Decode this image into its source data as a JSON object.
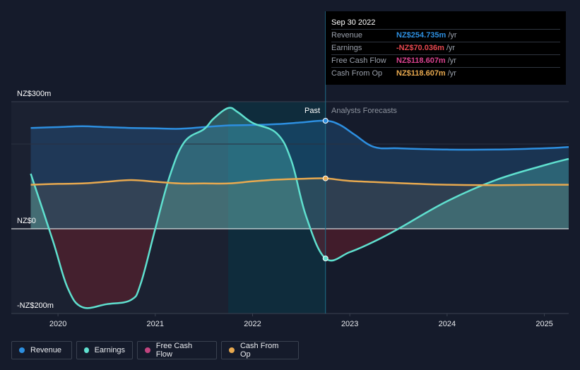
{
  "tooltip": {
    "date": "Sep 30 2022",
    "rows": [
      {
        "name": "Revenue",
        "value": "NZ$254.735m",
        "unit": "/yr",
        "color": "#2d8fe0"
      },
      {
        "name": "Earnings",
        "value": "-NZ$70.036m",
        "unit": "/yr",
        "color": "#e8484f"
      },
      {
        "name": "Free Cash Flow",
        "value": "NZ$118.607m",
        "unit": "/yr",
        "color": "#d9428f"
      },
      {
        "name": "Cash From Op",
        "value": "NZ$118.607m",
        "unit": "/yr",
        "color": "#e8a94f"
      }
    ]
  },
  "regions": {
    "past_label": "Past",
    "forecast_label": "Analysts Forecasts"
  },
  "legend": [
    {
      "label": "Revenue",
      "color": "#2d8fe0"
    },
    {
      "label": "Earnings",
      "color": "#5fe0cf"
    },
    {
      "label": "Free Cash Flow",
      "color": "#c2447f"
    },
    {
      "label": "Cash From Op",
      "color": "#e8a94f"
    }
  ],
  "chart_data": {
    "type": "line",
    "y_tick_labels": [
      "NZ$300m",
      "NZ$0",
      "-NZ$200m"
    ],
    "y_ticks": [
      300,
      0,
      -200
    ],
    "ylim": [
      -200,
      300
    ],
    "x_tick_labels": [
      "2020",
      "2021",
      "2022",
      "2023",
      "2024",
      "2025"
    ],
    "x_ticks": [
      2020.0,
      2021.0,
      2022.0,
      2023.0,
      2024.0,
      2025.0
    ],
    "xlim": [
      2019.52,
      2025.25
    ],
    "past_end": 2022.75,
    "highlight_start": 2021.75,
    "series": [
      {
        "name": "Revenue",
        "color": "#2d8fe0",
        "x": [
          2019.72,
          2020.0,
          2020.25,
          2020.5,
          2020.75,
          2021.0,
          2021.25,
          2021.5,
          2021.75,
          2022.0,
          2022.25,
          2022.5,
          2022.75,
          2022.9,
          2023.05,
          2023.25,
          2023.5,
          2024.0,
          2024.5,
          2025.0,
          2025.25
        ],
        "y": [
          238,
          240,
          242,
          240,
          238,
          237,
          236,
          240,
          244,
          245,
          247,
          251,
          255,
          245,
          222,
          193,
          190,
          187,
          187,
          190,
          193
        ]
      },
      {
        "name": "Earnings",
        "color": "#5fe0cf",
        "x": [
          2019.72,
          2019.95,
          2020.1,
          2020.25,
          2020.5,
          2020.75,
          2020.85,
          2021.0,
          2021.15,
          2021.3,
          2021.5,
          2021.6,
          2021.75,
          2021.85,
          2022.0,
          2022.25,
          2022.4,
          2022.55,
          2022.75,
          2023.0,
          2023.25,
          2023.5,
          2024.0,
          2024.5,
          2025.0,
          2025.25
        ],
        "y": [
          130,
          -30,
          -140,
          -185,
          -178,
          -168,
          -130,
          0,
          125,
          205,
          235,
          260,
          285,
          275,
          250,
          225,
          160,
          30,
          -70,
          -55,
          -30,
          0,
          65,
          115,
          150,
          165
        ]
      },
      {
        "name": "Cash From Op",
        "color": "#e8a94f",
        "x": [
          2019.72,
          2020.0,
          2020.25,
          2020.5,
          2020.75,
          2021.0,
          2021.25,
          2021.5,
          2021.75,
          2022.0,
          2022.25,
          2022.5,
          2022.75,
          2023.0,
          2023.5,
          2024.0,
          2024.5,
          2025.0,
          2025.25
        ],
        "y": [
          104,
          106,
          107,
          111,
          115,
          111,
          107,
          107,
          107,
          112,
          116,
          118,
          119,
          113,
          108,
          104,
          103,
          104,
          104
        ]
      }
    ]
  }
}
